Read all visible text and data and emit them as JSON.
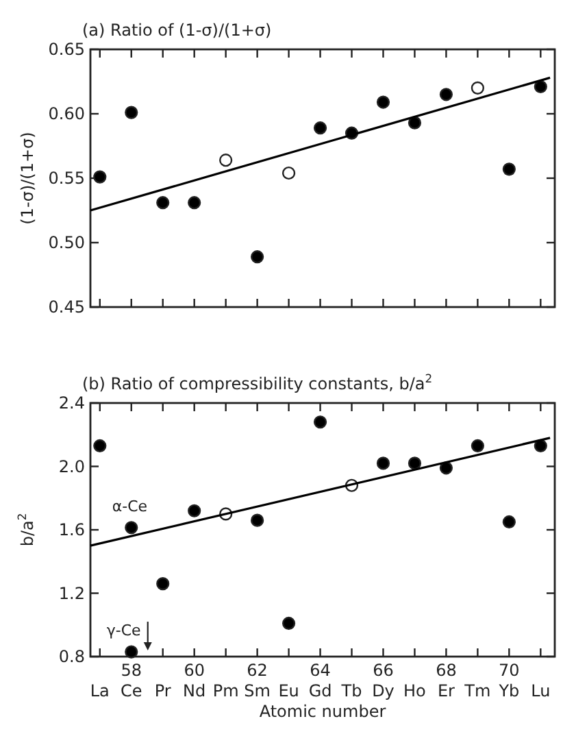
{
  "chart_data": [
    {
      "type": "scatter",
      "title": "(a) Ratio of (1-σ)/(1+σ)",
      "ylabel": "(1-σ)/(1+σ)",
      "xlim": [
        56.7,
        71.45
      ],
      "ylim": [
        0.45,
        0.65
      ],
      "xticks": [
        {
          "value": 57,
          "label": null
        },
        {
          "value": 58,
          "label": null
        },
        {
          "value": 59,
          "label": null
        },
        {
          "value": 60,
          "label": null
        },
        {
          "value": 61,
          "label": null
        },
        {
          "value": 62,
          "label": null
        },
        {
          "value": 63,
          "label": null
        },
        {
          "value": 64,
          "label": null
        },
        {
          "value": 65,
          "label": null
        },
        {
          "value": 66,
          "label": null
        },
        {
          "value": 67,
          "label": null
        },
        {
          "value": 68,
          "label": null
        },
        {
          "value": 69,
          "label": null
        },
        {
          "value": 70,
          "label": null
        },
        {
          "value": 71,
          "label": null
        }
      ],
      "yticks": [
        0.45,
        {
          "value": 0.5,
          "label": "0.50"
        },
        0.55,
        {
          "value": 0.6,
          "label": "0.60"
        },
        0.65
      ],
      "tick_labels": "y",
      "grid": false,
      "series": [
        {
          "marker": "circle",
          "color": "#000000",
          "x": [
            57,
            58,
            59,
            60,
            62,
            64,
            65,
            66,
            67,
            68,
            70,
            71
          ],
          "values": [
            0.551,
            0.601,
            0.531,
            0.531,
            0.489,
            0.589,
            0.585,
            0.609,
            0.593,
            0.615,
            0.557,
            0.621
          ]
        },
        {
          "marker": "circle",
          "color": "#ffffff",
          "x": [
            61,
            63,
            69
          ],
          "values": [
            0.564,
            0.554,
            0.62
          ]
        },
        {
          "type": "line",
          "color": "#000000",
          "x": [
            56.7,
            71.3
          ],
          "values": [
            0.525,
            0.628
          ]
        }
      ]
    },
    {
      "type": "scatter",
      "title": "(b) Ratio of compressibility constants, b/a$^{2}$",
      "ylabel": "b/a$^{2}$",
      "xlabel": "Atomic number",
      "xlim": [
        56.7,
        71.45
      ],
      "ylim": [
        0.8,
        2.4
      ],
      "xticks": [
        {
          "value": 57,
          "label": "La"
        },
        {
          "value": 58,
          "label": "58\nCe"
        },
        {
          "value": 59,
          "label": "Pr"
        },
        {
          "value": 60,
          "label": "60\nNd"
        },
        {
          "value": 61,
          "label": "Pm"
        },
        {
          "value": 62,
          "label": "62\nSm"
        },
        {
          "value": 63,
          "label": "Eu"
        },
        {
          "value": 64,
          "label": "64\nGd"
        },
        {
          "value": 65,
          "label": "Tb"
        },
        {
          "value": 66,
          "label": "66\nDy"
        },
        {
          "value": 67,
          "label": "Ho"
        },
        {
          "value": 68,
          "label": "68\nEr"
        },
        {
          "value": 69,
          "label": "Tm"
        },
        {
          "value": 70,
          "label": "70\nYb"
        },
        {
          "value": 71,
          "label": "Lu"
        }
      ],
      "yticks": [
        0.8,
        1.2,
        1.6,
        {
          "value": 2,
          "label": "2.0"
        },
        2.4
      ],
      "grid": false,
      "annotations": [
        {
          "text": "α-Ce",
          "x": 58,
          "y": 1.614
        },
        {
          "text": "γ-Ce",
          "x": 58,
          "y": 0.83
        }
      ],
      "series": [
        {
          "marker": "circle",
          "color": "#000000",
          "x": [
            57,
            58,
            58,
            59,
            60,
            62,
            63,
            64,
            66,
            67,
            68,
            69,
            70,
            71
          ],
          "values": [
            2.13,
            1.614,
            0.83,
            1.26,
            1.72,
            1.66,
            1.01,
            2.28,
            2.02,
            2.02,
            1.99,
            2.13,
            1.65,
            2.13
          ]
        },
        {
          "marker": "circle",
          "color": "#ffffff",
          "x": [
            61,
            65
          ],
          "values": [
            1.7,
            1.88
          ]
        },
        {
          "type": "line",
          "color": "#000000",
          "x": [
            56.7,
            71.3
          ],
          "values": [
            1.5,
            2.18
          ]
        }
      ]
    }
  ]
}
